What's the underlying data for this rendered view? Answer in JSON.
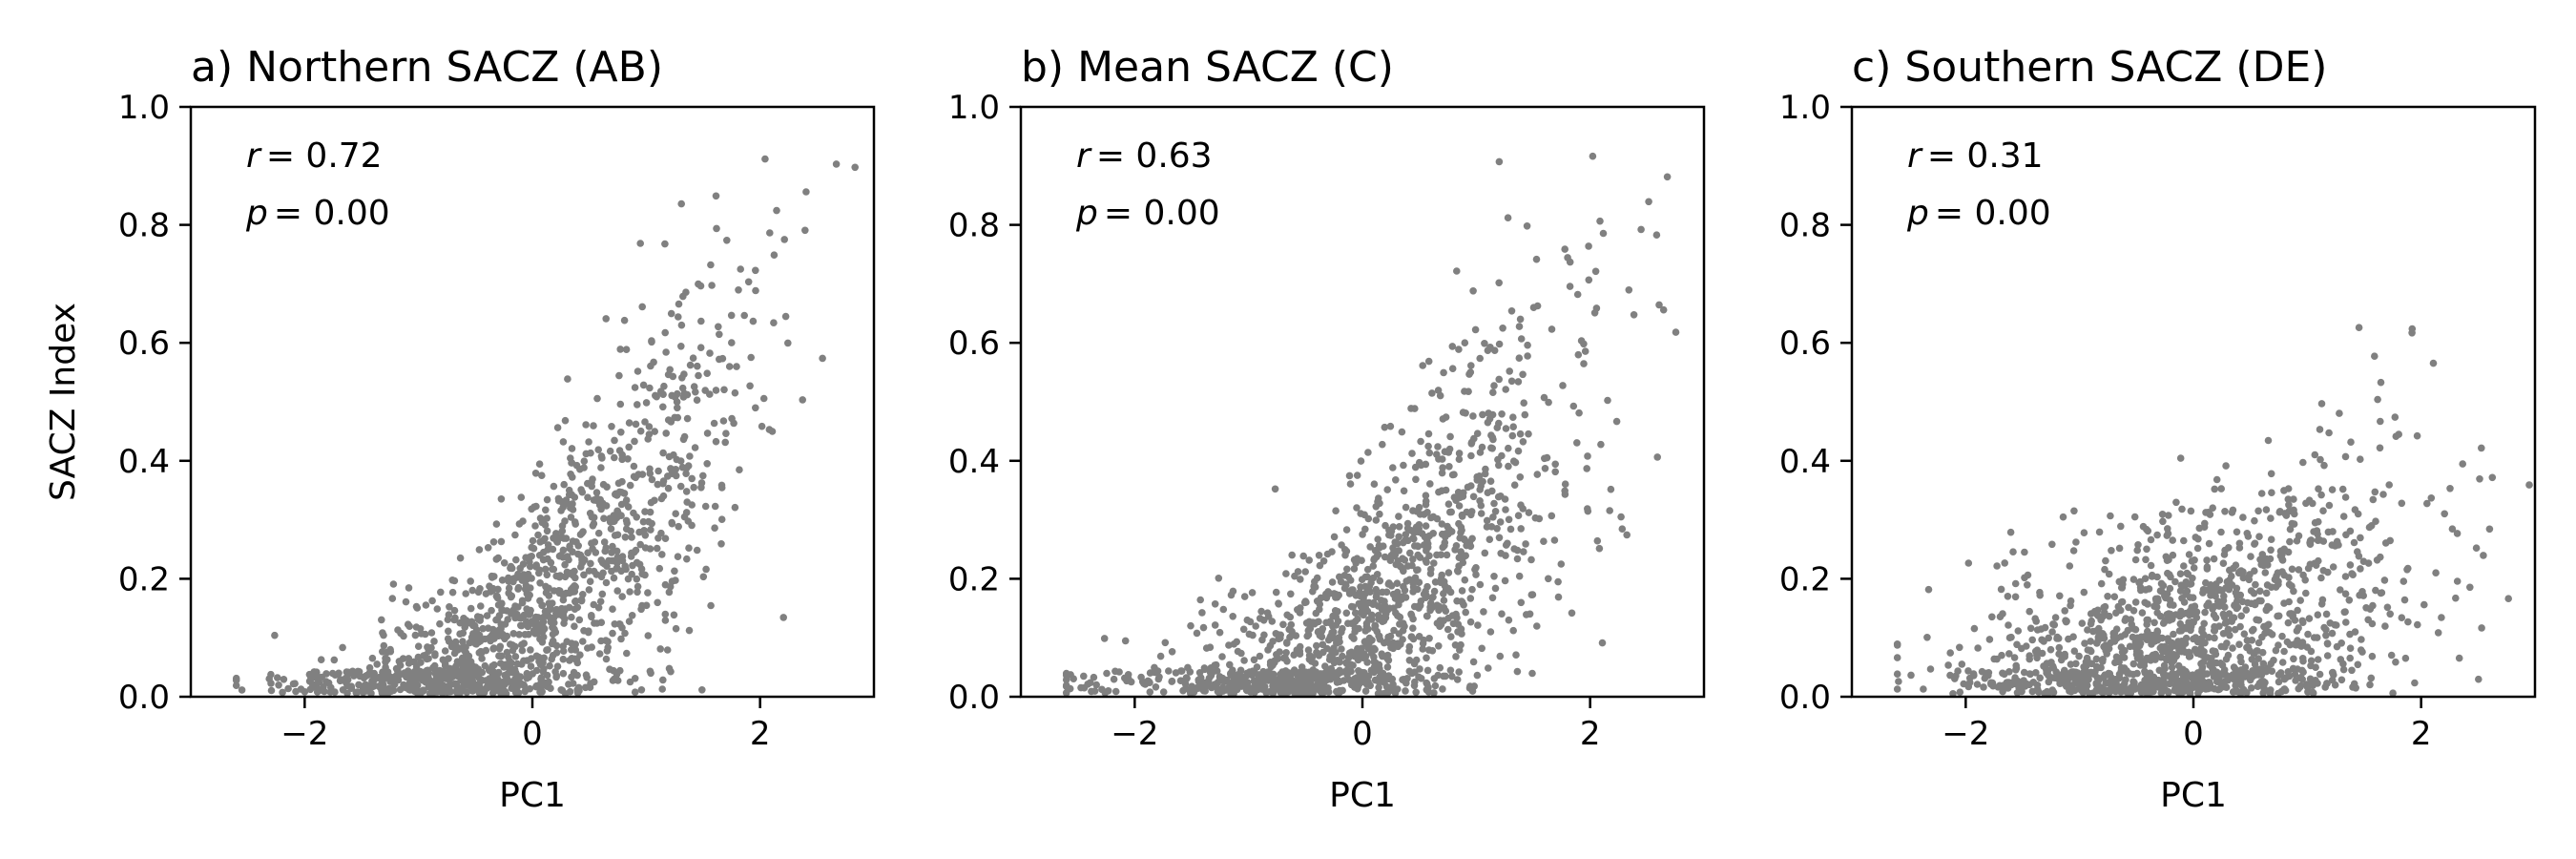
{
  "figure": {
    "y_axis_label": "SACZ Index",
    "point_color": "#808080"
  },
  "chart_data": [
    {
      "type": "scatter",
      "title": "a) Northern SACZ (AB)",
      "xlabel": "PC1",
      "ylabel": "SACZ Index",
      "xlim": [
        -3,
        3
      ],
      "ylim": [
        0,
        1
      ],
      "xticks": [
        -2,
        0,
        2
      ],
      "xtick_labels": [
        "−2",
        "0",
        "2"
      ],
      "yticks": [
        0.0,
        0.2,
        0.4,
        0.6,
        0.8,
        1.0
      ],
      "ytick_labels": [
        "0.0",
        "0.2",
        "0.4",
        "0.6",
        "0.8",
        "1.0"
      ],
      "stats": {
        "r_label": "r",
        "r_value": "= 0.72",
        "p_label": "p",
        "p_value": "= 0.00"
      },
      "generator": {
        "seed": 11,
        "n": 1400,
        "center": 0.13,
        "slope": 0.17,
        "curvature": 0.035,
        "noise": 0.085,
        "noise_growth": 0.045
      }
    },
    {
      "type": "scatter",
      "title": "b) Mean SACZ (C)",
      "xlabel": "PC1",
      "ylabel": "",
      "xlim": [
        -3,
        3
      ],
      "ylim": [
        0,
        1
      ],
      "xticks": [
        -2,
        0,
        2
      ],
      "xtick_labels": [
        "−2",
        "0",
        "2"
      ],
      "yticks": [
        0.0,
        0.2,
        0.4,
        0.6,
        0.8,
        1.0
      ],
      "ytick_labels": [
        "0.0",
        "0.2",
        "0.4",
        "0.6",
        "0.8",
        "1.0"
      ],
      "stats": {
        "r_label": "r",
        "r_value": "= 0.63",
        "p_label": "p",
        "p_value": "= 0.00"
      },
      "generator": {
        "seed": 23,
        "n": 1400,
        "center": 0.11,
        "slope": 0.15,
        "curvature": 0.03,
        "noise": 0.09,
        "noise_growth": 0.05
      }
    },
    {
      "type": "scatter",
      "title": "c) Southern SACZ (DE)",
      "xlabel": "PC1",
      "ylabel": "",
      "xlim": [
        -3,
        3
      ],
      "ylim": [
        0,
        1
      ],
      "xticks": [
        -2,
        0,
        2
      ],
      "xtick_labels": [
        "−2",
        "0",
        "2"
      ],
      "yticks": [
        0.0,
        0.2,
        0.4,
        0.6,
        0.8,
        1.0
      ],
      "ytick_labels": [
        "0.0",
        "0.2",
        "0.4",
        "0.6",
        "0.8",
        "1.0"
      ],
      "stats": {
        "r_label": "r",
        "r_value": "= 0.31",
        "p_label": "p",
        "p_value": "= 0.00"
      },
      "generator": {
        "seed": 37,
        "n": 1400,
        "center": 0.09,
        "slope": 0.055,
        "curvature": 0.012,
        "noise": 0.095,
        "noise_growth": 0.03
      }
    }
  ]
}
